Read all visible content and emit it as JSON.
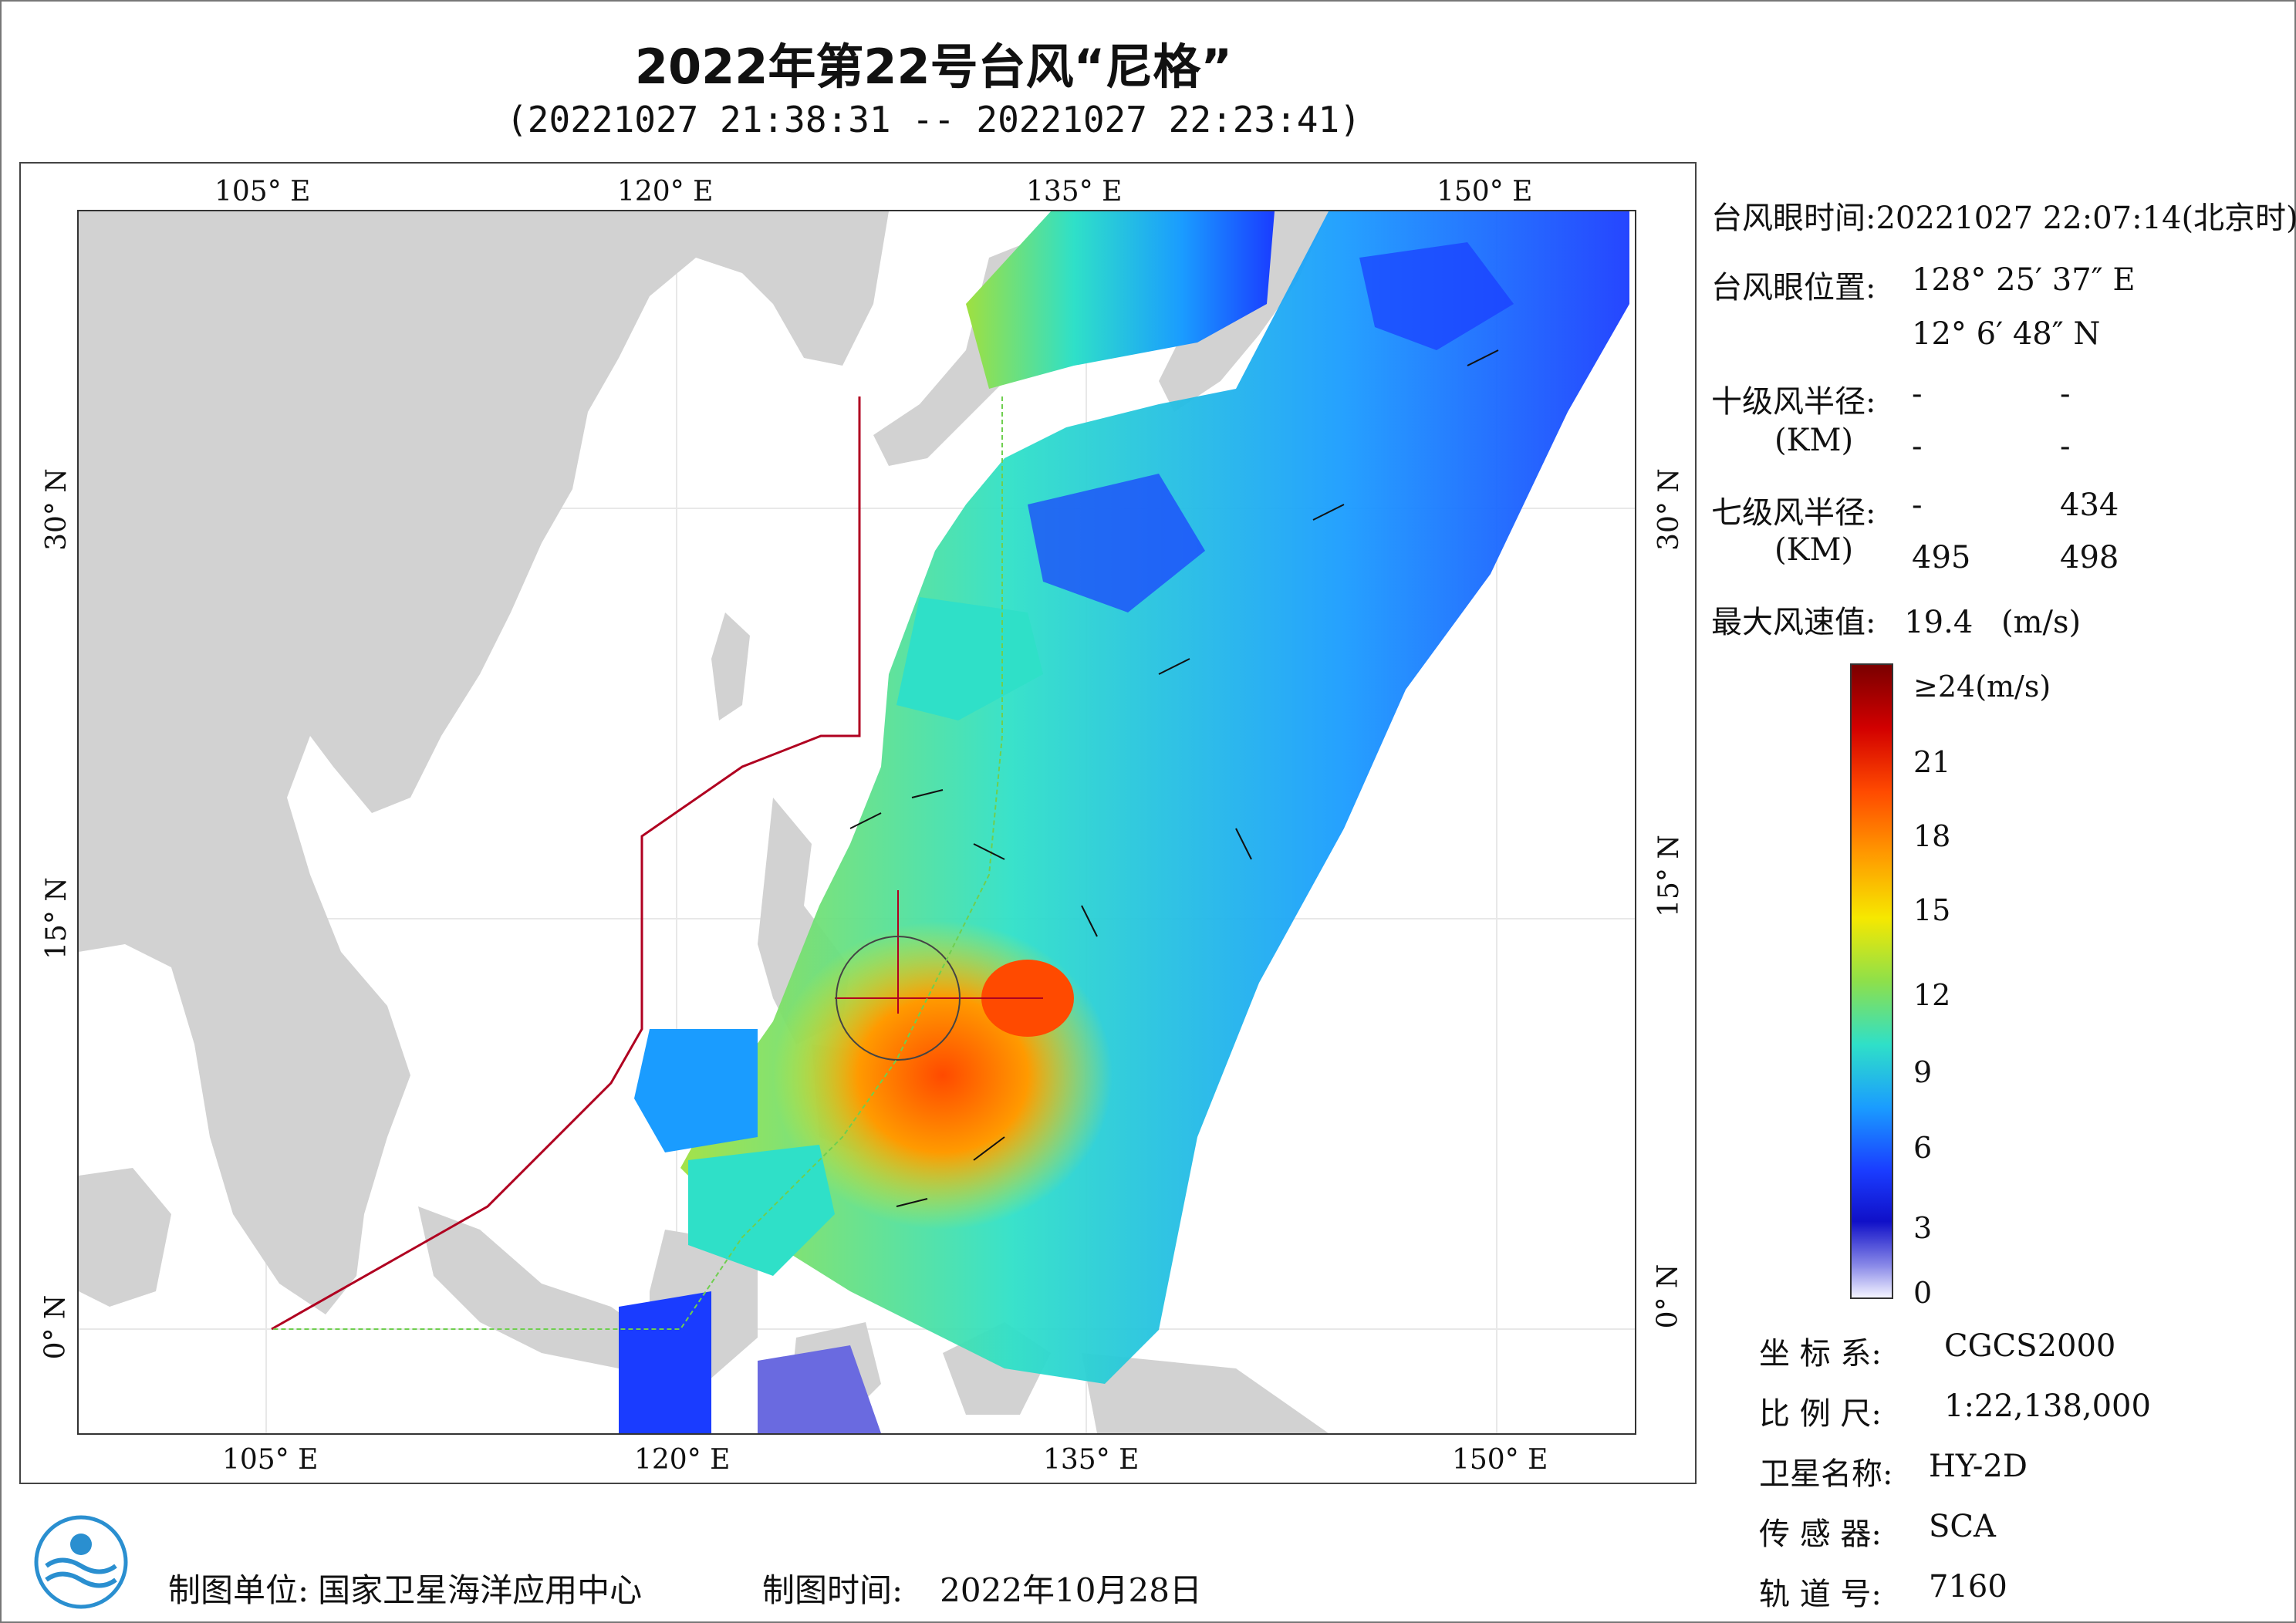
{
  "title": "2022年第22号台风“尼格”",
  "subtitle": "(20221027 21:38:31 -- 20221027 22:23:41)",
  "map": {
    "x_ticks": [
      "105° E",
      "120° E",
      "135° E",
      "150° E"
    ],
    "y_ticks": [
      "30° N",
      "15° N",
      "0° N"
    ],
    "warn_line_24h": "24小时警戒线",
    "warn_line_48h": "48小时警戒线"
  },
  "info": {
    "eye_time_label": "台风眼时间:",
    "eye_time_value": "20221027 22:07:14(北京时)",
    "eye_pos_label": "台风眼位置:",
    "eye_lon": "128° 25′ 37″ E",
    "eye_lat": "12° 6′ 48″ N",
    "r10_label": "十级风半径:",
    "r10_unit": "(KM)",
    "r10_values": [
      "-",
      "-",
      "-",
      "-"
    ],
    "r7_label": "七级风半径:",
    "r7_unit": "(KM)",
    "r7_values": [
      "-",
      "434",
      "495",
      "498"
    ],
    "max_label": "最大风速值:",
    "max_value": "19.4",
    "max_unit": "(m/s)"
  },
  "colorbar": {
    "labels": [
      "≥24(m/s)",
      "21",
      "18",
      "15",
      "12",
      "9",
      "6",
      "3",
      "0"
    ]
  },
  "meta": {
    "coord_label": "坐 标 系:",
    "coord_value": "CGCS2000",
    "scale_label": "比 例 尺:",
    "scale_value": "1:22,138,000",
    "sat_label": "卫星名称:",
    "sat_value": "HY-2D",
    "sensor_label": "传 感 器:",
    "sensor_value": "SCA",
    "orbit_label": "轨 道 号:",
    "orbit_value": "7160"
  },
  "footer": {
    "unit_label": "制图单位:",
    "unit_value": "国家卫星海洋应用中心",
    "time_label": "制图时间:",
    "time_value": "2022年10月28日"
  }
}
